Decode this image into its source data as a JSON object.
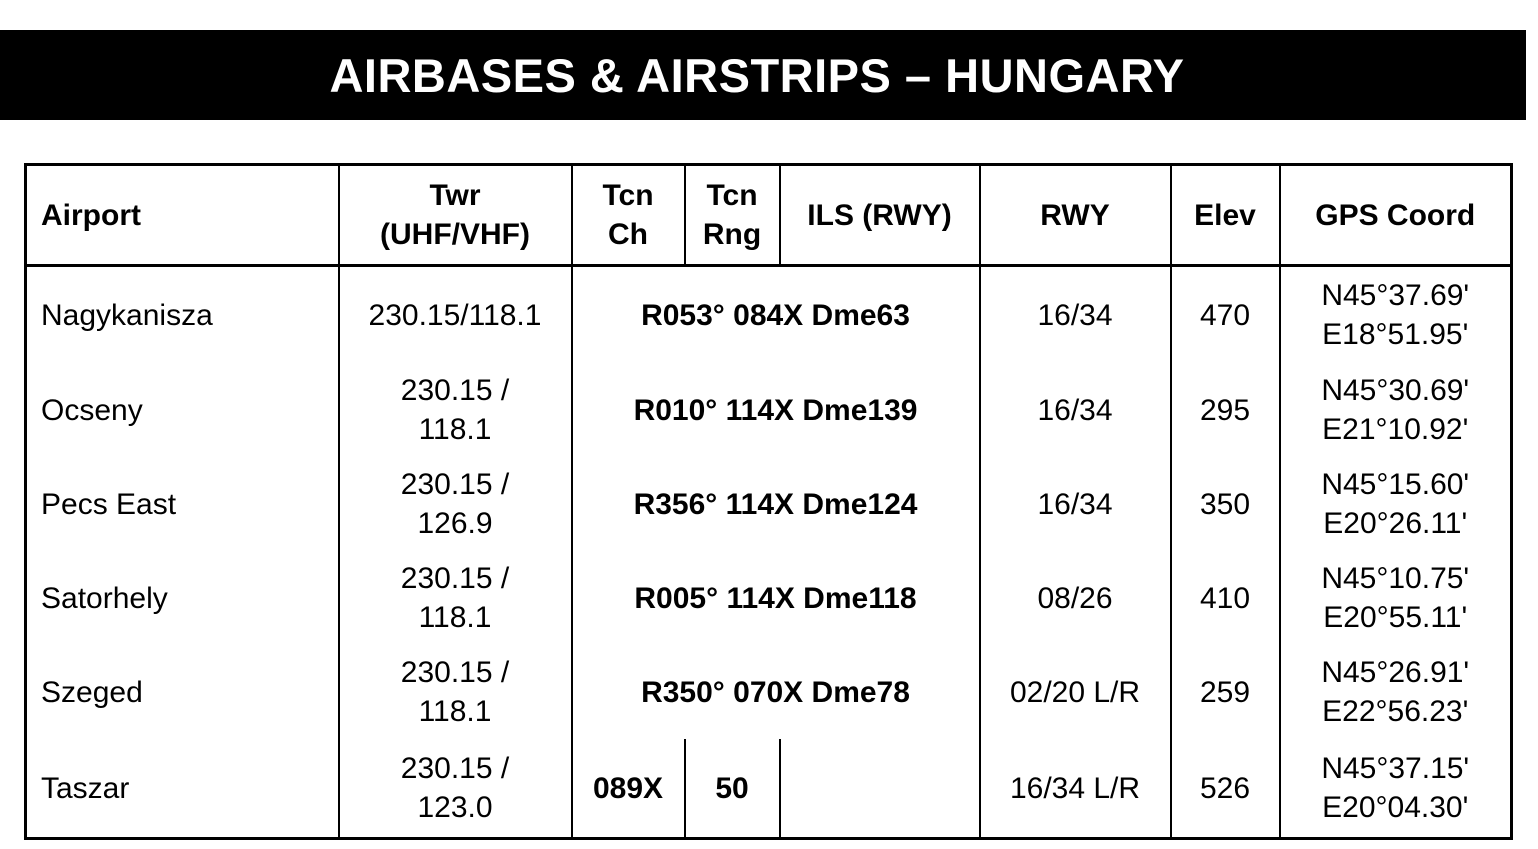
{
  "title": "AIRBASES & AIRSTRIPS – HUNGARY",
  "headers": {
    "airport": "Airport",
    "twr_line1": "Twr",
    "twr_line2": "(UHF/VHF)",
    "tcn_ch_line1": "Tcn",
    "tcn_ch_line2": "Ch",
    "tcn_rng_line1": "Tcn",
    "tcn_rng_line2": "Rng",
    "ils": "ILS (RWY)",
    "rwy": "RWY",
    "elev": "Elev",
    "gps": "GPS Coord"
  },
  "rows": [
    {
      "airport": "Nagykanisza",
      "twr1": "230.15/118.1",
      "twr2": "",
      "tcn": "R053° 084X Dme63",
      "rwy": "16/34",
      "elev": "470",
      "gps1": "N45°37.69'",
      "gps2": "E18°51.95'"
    },
    {
      "airport": "Ocseny",
      "twr1": "230.15 /",
      "twr2": "118.1",
      "tcn": "R010° 114X Dme139",
      "rwy": "16/34",
      "elev": "295",
      "gps1": "N45°30.69'",
      "gps2": "E21°10.92'"
    },
    {
      "airport": "Pecs East",
      "twr1": "230.15 /",
      "twr2": "126.9",
      "tcn": "R356° 114X Dme124",
      "rwy": "16/34",
      "elev": "350",
      "gps1": "N45°15.60'",
      "gps2": "E20°26.11'"
    },
    {
      "airport": "Satorhely",
      "twr1": "230.15 /",
      "twr2": "118.1",
      "tcn": "R005° 114X Dme118",
      "rwy": "08/26",
      "elev": "410",
      "gps1": "N45°10.75'",
      "gps2": "E20°55.11'"
    },
    {
      "airport": "Szeged",
      "twr1": "230.15 /",
      "twr2": "118.1",
      "tcn": "R350° 070X Dme78",
      "rwy": "02/20 L/R",
      "elev": "259",
      "gps1": "N45°26.91'",
      "gps2": "E22°56.23'"
    },
    {
      "airport": "Taszar",
      "twr1": "230.15 /",
      "twr2": "123.0",
      "tcn_ch": "089X",
      "tcn_rng": "50",
      "ils": "",
      "rwy": "16/34 L/R",
      "elev": "526",
      "gps1": "N45°37.15'",
      "gps2": "E20°04.30'"
    }
  ]
}
